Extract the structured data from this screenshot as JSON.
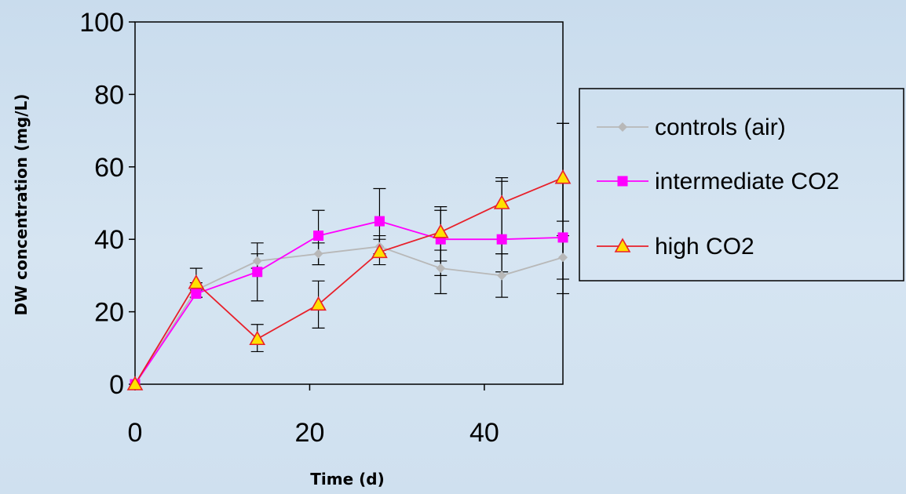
{
  "chart_data": {
    "type": "line",
    "xlabel": "Time (d)",
    "ylabel": "DW concentration (mg/L)",
    "xlim": [
      0,
      49
    ],
    "ylim": [
      0,
      100
    ],
    "xticks": [
      0,
      20,
      40
    ],
    "yticks": [
      0,
      20,
      40,
      60,
      80,
      100
    ],
    "grid": false,
    "legend_position": "right",
    "x": [
      0,
      7,
      14,
      21,
      28,
      35,
      42,
      49
    ],
    "series": [
      {
        "name": "controls (air)",
        "color": "#b8b8b8",
        "marker": "diamond",
        "values": [
          0,
          26,
          34,
          36,
          38,
          32,
          30,
          35
        ],
        "error_low": [
          null,
          24,
          32,
          33,
          35,
          25,
          24,
          29
        ],
        "error_high": [
          null,
          28,
          36,
          39,
          41,
          37,
          36,
          41
        ]
      },
      {
        "name": "intermediate CO2",
        "color": "#ff00ff",
        "marker": "square",
        "values": [
          0,
          25,
          31,
          41,
          45,
          40,
          40,
          40.5
        ],
        "error_low": [
          null,
          24,
          23,
          33,
          36,
          34,
          31,
          25
        ],
        "error_high": [
          null,
          27,
          39,
          48,
          54,
          48,
          56,
          72
        ]
      },
      {
        "name": "high CO2",
        "color": "#e8202a",
        "marker": "triangle",
        "values": [
          0,
          28,
          12.5,
          22,
          36.5,
          42,
          50,
          57
        ],
        "error_low": [
          null,
          26,
          9,
          15.5,
          33,
          30,
          36,
          45
        ],
        "error_high": [
          null,
          32,
          16.5,
          28.5,
          40,
          49,
          57,
          72
        ]
      }
    ]
  }
}
